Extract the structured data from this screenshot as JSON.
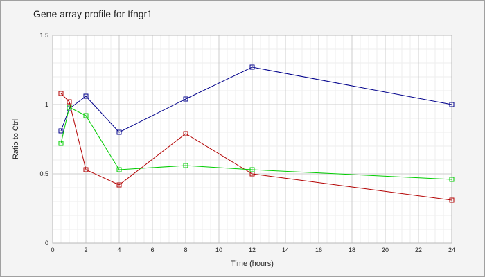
{
  "chart_data": {
    "type": "line",
    "title": "Gene array profile for Ifngr1",
    "xlabel": "Time (hours)",
    "ylabel": "Ratio to Ctrl",
    "xlim": [
      0,
      24
    ],
    "ylim": [
      0,
      1.5
    ],
    "xticks": [
      0,
      2,
      4,
      6,
      8,
      10,
      12,
      14,
      16,
      18,
      20,
      22,
      24
    ],
    "yticks": [
      0,
      0.5,
      1,
      1.5
    ],
    "ytick_labels": [
      "0",
      "0.5",
      "1",
      "1.5"
    ],
    "grid": true,
    "legend": "none",
    "series": [
      {
        "color": "#00008b",
        "marker": "square",
        "x": [
          0.5,
          1,
          2,
          4,
          8,
          12,
          24
        ],
        "y": [
          0.81,
          0.97,
          1.06,
          0.8,
          1.04,
          1.27,
          1.0
        ]
      },
      {
        "color": "#b30000",
        "marker": "square",
        "x": [
          0.5,
          1,
          2,
          4,
          8,
          12,
          24
        ],
        "y": [
          1.08,
          1.02,
          0.53,
          0.42,
          0.79,
          0.5,
          0.31
        ]
      },
      {
        "color": "#00cc00",
        "marker": "square",
        "x": [
          0.5,
          1,
          2,
          4,
          8,
          12,
          24
        ],
        "y": [
          0.72,
          0.98,
          0.92,
          0.53,
          0.56,
          0.53,
          0.46
        ]
      }
    ]
  }
}
